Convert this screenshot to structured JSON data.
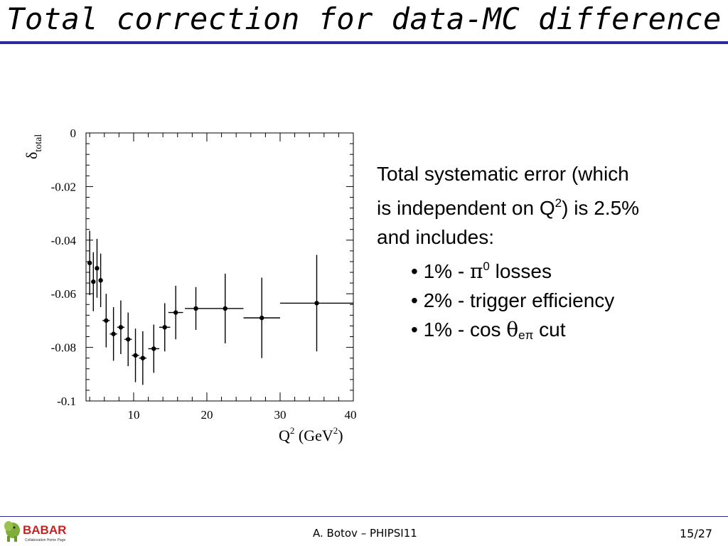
{
  "slide": {
    "title": "Total correction for data-MC difference",
    "footer_author": "A. Botov – PHIPSI11",
    "page_number": "15/27",
    "colors": {
      "title_rule": "#2b2b9c",
      "footer_rule": "#2b2b9c"
    }
  },
  "logo": {
    "icon": "babar-elephant-icon",
    "text": "BABAR",
    "tagline": "Collaboration Home Page"
  },
  "systematics": {
    "line1": "Total systematic error (which",
    "line2_a": "is independent on Q",
    "line2_sup": "2",
    "line2_b": ") is 2.5%",
    "line3": "and includes:",
    "items": [
      {
        "bullet": "•",
        "pre": "1%  - ",
        "symbol": "π",
        "sup": "0",
        "post": " losses"
      },
      {
        "bullet": "•",
        "pre": "2%  - trigger efficiency"
      },
      {
        "bullet": "•",
        "pre": "1%  -  cos ",
        "symbol": "θ",
        "sub": "eπ",
        "post": " cut"
      }
    ]
  },
  "chart_data": {
    "type": "scatter",
    "ylabel": "δ",
    "ylabel_sub": "total",
    "xlabel": "Q",
    "xlabel_sup": "2",
    "xlabel_unit": " (GeV",
    "xlabel_unit_sup": "2",
    "xlabel_unit_close": ")",
    "xlim": [
      3.5,
      40
    ],
    "ylim": [
      -0.1,
      0
    ],
    "xticks": [
      10,
      20,
      30,
      40
    ],
    "yticks": [
      0,
      -0.02,
      -0.04,
      -0.06,
      -0.08,
      -0.1
    ],
    "ytick_labels": [
      "0",
      "-0.02",
      "-0.04",
      "-0.06",
      "-0.08",
      "-0.1"
    ],
    "xtick_labels": [
      "10",
      "20",
      "30",
      "40"
    ],
    "grid": false,
    "points": [
      {
        "x": 4.0,
        "y": -0.0485,
        "err": 0.012,
        "xerr": 0.25
      },
      {
        "x": 4.5,
        "y": -0.0555,
        "err": 0.011,
        "xerr": 0.25
      },
      {
        "x": 5.0,
        "y": -0.0505,
        "err": 0.011,
        "xerr": 0.25
      },
      {
        "x": 5.5,
        "y": -0.055,
        "err": 0.01,
        "xerr": 0.25
      },
      {
        "x": 6.25,
        "y": -0.07,
        "err": 0.01,
        "xerr": 0.5
      },
      {
        "x": 7.25,
        "y": -0.075,
        "err": 0.01,
        "xerr": 0.5
      },
      {
        "x": 8.25,
        "y": -0.0725,
        "err": 0.01,
        "xerr": 0.5
      },
      {
        "x": 9.25,
        "y": -0.077,
        "err": 0.01,
        "xerr": 0.5
      },
      {
        "x": 10.25,
        "y": -0.083,
        "err": 0.01,
        "xerr": 0.5
      },
      {
        "x": 11.25,
        "y": -0.084,
        "err": 0.01,
        "xerr": 0.5
      },
      {
        "x": 12.75,
        "y": -0.0805,
        "err": 0.009,
        "xerr": 0.75
      },
      {
        "x": 14.25,
        "y": -0.0725,
        "err": 0.009,
        "xerr": 0.75
      },
      {
        "x": 15.75,
        "y": -0.067,
        "err": 0.01,
        "xerr": 1.0
      },
      {
        "x": 18.5,
        "y": -0.0655,
        "err": 0.008,
        "xerr": 1.5
      },
      {
        "x": 22.5,
        "y": -0.0655,
        "err": 0.013,
        "xerr": 2.5
      },
      {
        "x": 27.5,
        "y": -0.069,
        "err": 0.015,
        "xerr": 2.5
      },
      {
        "x": 35.0,
        "y": -0.0635,
        "err": 0.018,
        "xerr": 5.0
      }
    ]
  }
}
